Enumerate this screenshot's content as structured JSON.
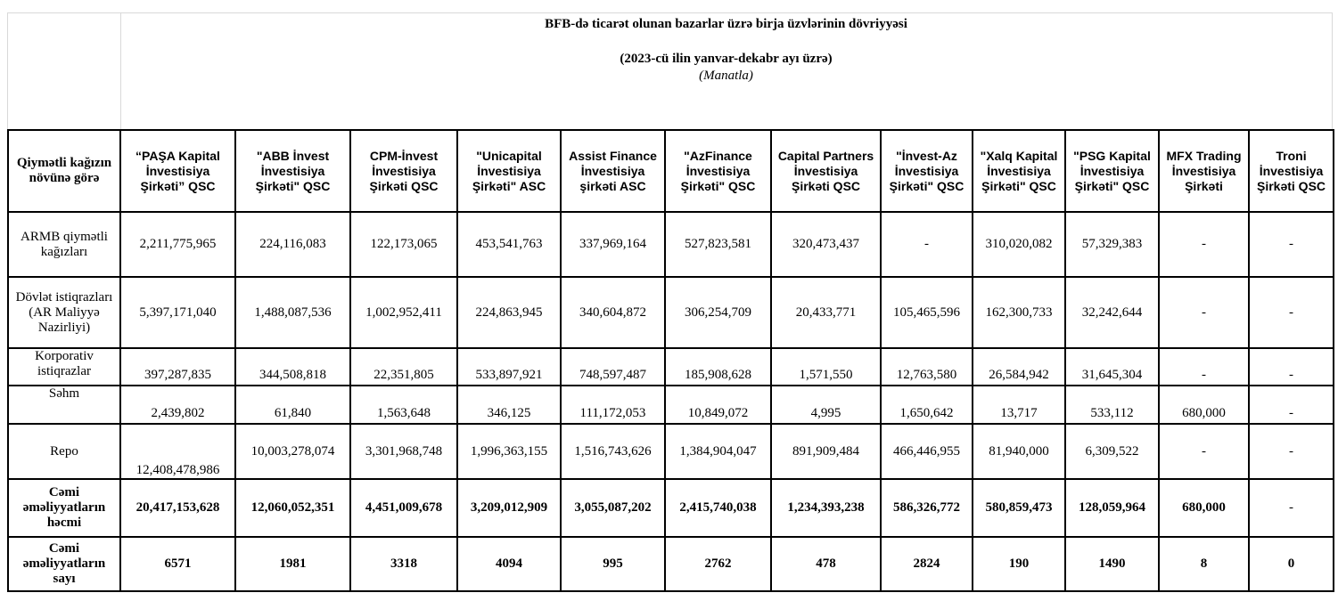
{
  "title": "BFB-də ticarət olunan bazarlar üzrə birja üzvlərinin dövriyyəsi",
  "period": "(2023-cü ilin yanvar-dekabr ayı üzrə)",
  "unit": "(Manatla)",
  "table": {
    "corner_header": "Qiymətli kağızın növünə görə",
    "columns": [
      "“PAŞA Kapital İnvestisiya Şirkəti” QSC",
      "\"ABB İnvest İnvestisiya Şirkəti\" QSC",
      "CPM-İnvest İnvestisiya Şirkəti QSC",
      "\"Unicapital İnvestisiya Şirkəti\" ASC",
      "Assist Finance İnvestisiya şirkəti ASC",
      "\"AzFinance İnvestisiya Şirkəti\" QSC",
      "Capital Partners İnvestisiya Şirkəti QSC",
      "\"İnvest-Az İnvestisiya Şirkəti\" QSC",
      "\"Xalq Kapital İnvestisiya Şirkəti\" QSC",
      "\"PSG Kapital İnvestisiya Şirkəti\" QSC",
      "MFX Trading İnvestisiya Şirkəti",
      "Troni İnvestisiya Şirkəti QSC"
    ],
    "rows": [
      {
        "label": "ARMB qiymətli kağızları",
        "values": [
          "2,211,775,965",
          "224,116,083",
          "122,173,065",
          "453,541,763",
          "337,969,164",
          "527,823,581",
          "320,473,437",
          "-",
          "310,020,082",
          "57,329,383",
          "-",
          "-"
        ]
      },
      {
        "label": "Dövlət istiqrazları (AR Maliyyə Nazirliyi)",
        "values": [
          "5,397,171,040",
          "1,488,087,536",
          "1,002,952,411",
          "224,863,945",
          "340,604,872",
          "306,254,709",
          "20,433,771",
          "105,465,596",
          "162,300,733",
          "32,242,644",
          "-",
          "-"
        ]
      },
      {
        "label": "Korporativ istiqrazlar",
        "values": [
          "397,287,835",
          "344,508,818",
          "22,351,805",
          "533,897,921",
          "748,597,487",
          "185,908,628",
          "1,571,550",
          "12,763,580",
          "26,584,942",
          "31,645,304",
          "-",
          "-"
        ]
      },
      {
        "label": "Səhm",
        "values": [
          "2,439,802",
          "61,840",
          "1,563,648",
          "346,125",
          "111,172,053",
          "10,849,072",
          "4,995",
          "1,650,642",
          "13,717",
          "533,112",
          "680,000",
          "-"
        ]
      },
      {
        "label": "Repo",
        "values": [
          "12,408,478,986",
          "10,003,278,074",
          "3,301,968,748",
          "1,996,363,155",
          "1,516,743,626",
          "1,384,904,047",
          "891,909,484",
          "466,446,955",
          "81,940,000",
          "6,309,522",
          "-",
          "-"
        ]
      },
      {
        "label": "Cəmi əməliyyatların həcmi",
        "values": [
          "20,417,153,628",
          "12,060,052,351",
          "4,451,009,678",
          "3,209,012,909",
          "3,055,087,202",
          "2,415,740,038",
          "1,234,393,238",
          "586,326,772",
          "580,859,473",
          "128,059,964",
          "680,000",
          "-"
        ]
      },
      {
        "label": "Cəmi əməliyyatların sayı",
        "values": [
          "6571",
          "1981",
          "3318",
          "4094",
          "995",
          "2762",
          "478",
          "2824",
          "190",
          "1490",
          "8",
          "0"
        ]
      }
    ]
  }
}
